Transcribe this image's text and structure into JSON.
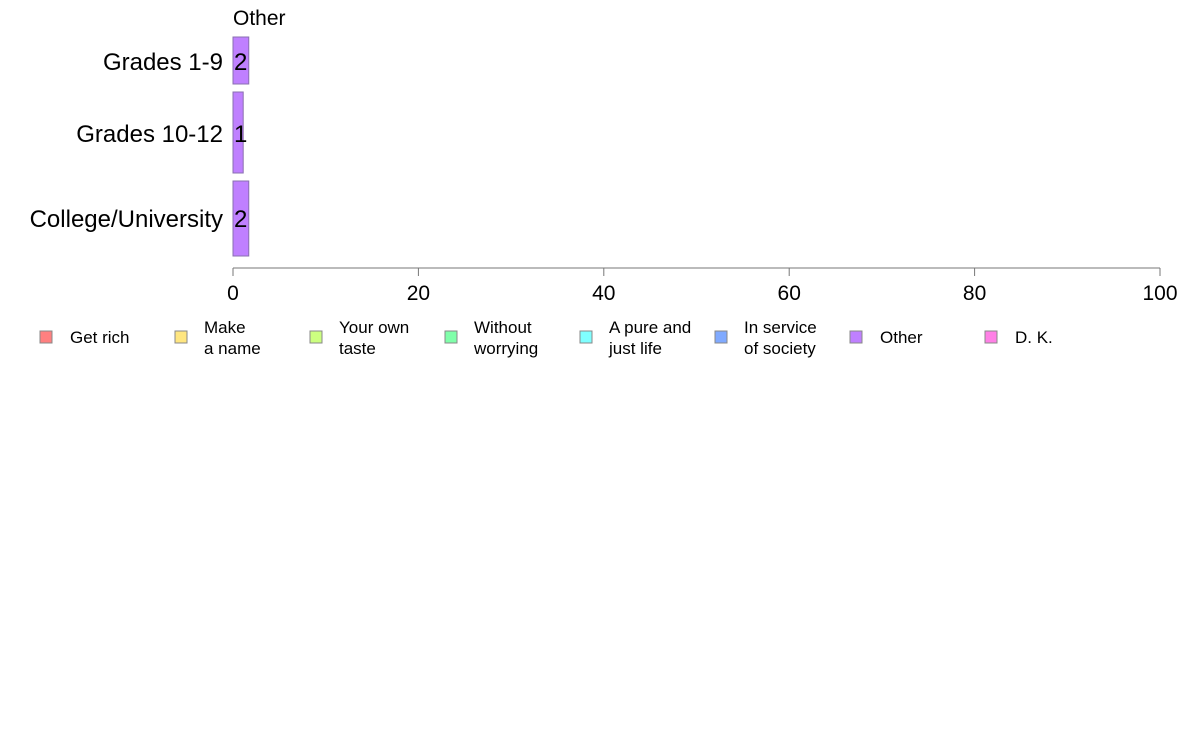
{
  "chart_data": {
    "type": "bar",
    "orientation": "horizontal",
    "stacked": true,
    "categories": [
      "Grades 1-9",
      "Grades 10-12",
      "College/University"
    ],
    "series": [
      {
        "name": "Get rich",
        "color": "#ff8080",
        "values": [
          0,
          0,
          0
        ]
      },
      {
        "name": "Make a name",
        "color": "#ffe680",
        "values": [
          0,
          0,
          0
        ]
      },
      {
        "name": "Your own taste",
        "color": "#ccff80",
        "values": [
          0,
          0,
          0
        ]
      },
      {
        "name": "Without worrying",
        "color": "#80ffaa",
        "values": [
          0,
          0,
          0
        ]
      },
      {
        "name": "A pure and just life",
        "color": "#80ffff",
        "values": [
          0,
          0,
          0
        ]
      },
      {
        "name": "In service of society",
        "color": "#80aaff",
        "values": [
          0,
          0,
          0
        ]
      },
      {
        "name": "Other",
        "color": "#bf80ff",
        "values": [
          1.7,
          1.1,
          1.7
        ]
      },
      {
        "name": "D. K.",
        "color": "#ff80e6",
        "values": [
          0,
          0,
          0
        ]
      }
    ],
    "data_labels": [
      "2",
      "1",
      "2"
    ],
    "series_title": "Other",
    "xlim": [
      0,
      100
    ],
    "xticks": [
      0,
      20,
      40,
      60,
      80,
      100
    ],
    "title": "",
    "xlabel": "",
    "ylabel": "",
    "grid": false,
    "legend": {
      "position": "bottom",
      "items": [
        {
          "lines": [
            "Get rich"
          ],
          "color": "#ff8080"
        },
        {
          "lines": [
            "Make",
            "a name"
          ],
          "color": "#ffe680"
        },
        {
          "lines": [
            "Your own",
            "taste"
          ],
          "color": "#ccff80"
        },
        {
          "lines": [
            "Without",
            "worrying"
          ],
          "color": "#80ffaa"
        },
        {
          "lines": [
            "A pure and",
            "just life"
          ],
          "color": "#80ffff"
        },
        {
          "lines": [
            "In service",
            "of society"
          ],
          "color": "#80aaff"
        },
        {
          "lines": [
            "Other"
          ],
          "color": "#bf80ff"
        },
        {
          "lines": [
            "D. K."
          ],
          "color": "#ff80e6"
        }
      ]
    }
  }
}
